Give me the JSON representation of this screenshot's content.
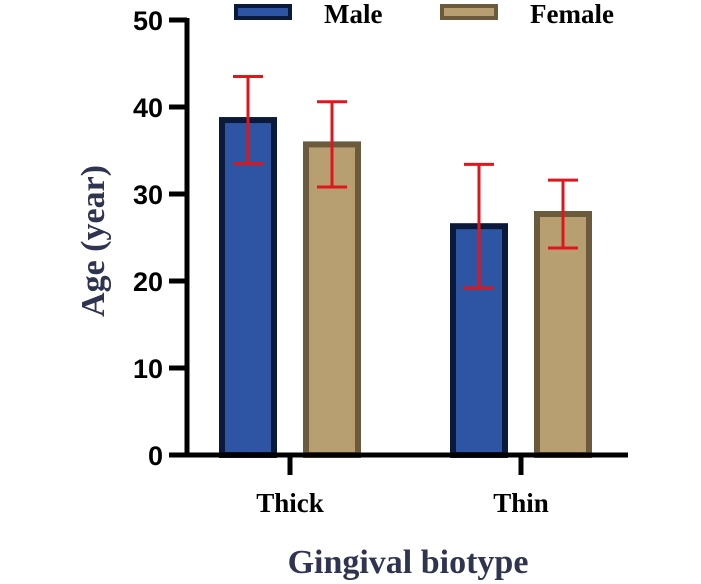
{
  "chart_data": {
    "type": "bar",
    "title": "",
    "xlabel": "Gingival biotype",
    "ylabel": "Age (year)",
    "categories": [
      "Thick",
      "Thin"
    ],
    "ylim": [
      0,
      50
    ],
    "yticks": [
      0,
      10,
      20,
      30,
      40,
      50
    ],
    "grid": false,
    "legend_position": "top",
    "series": [
      {
        "name": "Male",
        "values": [
          38.5,
          26.3
        ],
        "error": [
          5.0,
          7.1
        ],
        "fill": "#2e55a4",
        "stroke": "#0b1a3a"
      },
      {
        "name": "Female",
        "values": [
          35.7,
          27.7
        ],
        "error": [
          4.9,
          3.9
        ],
        "fill": "#b79f72",
        "stroke": "#6b5a3c"
      }
    ],
    "error_bar_color": "#e0161d",
    "axis_color": "#000000"
  }
}
